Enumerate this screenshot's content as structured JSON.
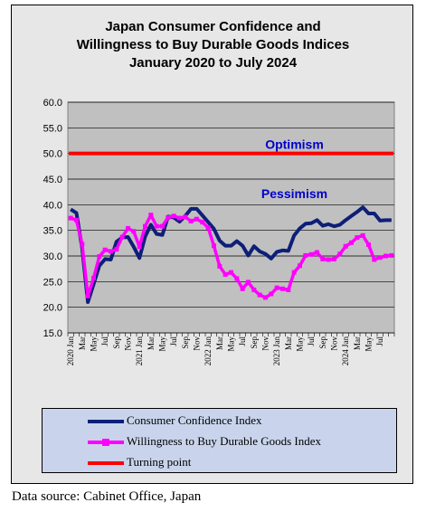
{
  "source_note": "Data source: Cabinet Office, Japan",
  "chart_data": {
    "type": "line",
    "title_lines": [
      "Japan Consumer Confidence and",
      "Willingness to Buy Durable Goods Indices",
      "January 2020 to July 2024"
    ],
    "ylim": [
      15.0,
      60.0
    ],
    "yticks": [
      "60.0",
      "55.0",
      "50.0",
      "45.0",
      "40.0",
      "35.0",
      "30.0",
      "25.0",
      "20.0",
      "15.0"
    ],
    "grid": true,
    "legend_position": "bottom",
    "x_tick_labels": [
      "2020 Jan",
      "Mar",
      "May",
      "Jul",
      "Sep",
      "Nov",
      "2021 Jan",
      "Mar",
      "May",
      "Jul",
      "Sep",
      "Nov",
      "2022 Jan",
      "Mar",
      "May",
      "Jul",
      "Sep",
      "Nov",
      "2023 Jan",
      "Mar",
      "May",
      "Jul",
      "Sep",
      "Nov",
      "2024 Jan",
      "Mar",
      "May",
      "Jul"
    ],
    "series": [
      {
        "name": "Consumer Confidence Index",
        "color": "#0d1f78",
        "values": [
          39.1,
          38.4,
          31.5,
          21.0,
          24.5,
          28.1,
          29.4,
          29.3,
          32.8,
          33.6,
          33.7,
          31.8,
          29.6,
          33.8,
          36.1,
          34.3,
          34.1,
          37.7,
          37.5,
          36.7,
          37.8,
          39.2,
          39.2,
          37.9,
          36.6,
          35.3,
          33.0,
          32.0,
          32.0,
          32.9,
          32.0,
          30.1,
          31.9,
          30.9,
          30.4,
          29.5,
          30.8,
          31.1,
          31.0,
          34.0,
          35.4,
          36.3,
          36.4,
          37.0,
          35.9,
          36.2,
          35.8,
          36.1,
          37.0,
          37.8,
          38.6,
          39.5,
          38.3,
          38.3,
          36.9,
          37.0,
          37.0
        ],
        "markers": "none"
      },
      {
        "name": "Willingness to Buy Durable Goods Index",
        "color": "#ff00ff",
        "values": [
          37.4,
          37.0,
          32.3,
          22.2,
          25.7,
          29.9,
          31.2,
          30.9,
          31.3,
          33.7,
          35.4,
          34.8,
          31.8,
          35.8,
          38.0,
          35.8,
          35.8,
          37.5,
          37.8,
          37.4,
          37.6,
          36.8,
          37.2,
          36.6,
          35.5,
          32.0,
          28.0,
          26.4,
          26.8,
          25.6,
          23.6,
          24.9,
          23.4,
          22.4,
          21.9,
          22.6,
          23.8,
          23.6,
          23.4,
          26.8,
          28.1,
          30.1,
          30.3,
          30.7,
          29.4,
          29.3,
          29.4,
          30.4,
          31.9,
          32.6,
          33.6,
          34.0,
          32.2,
          29.3,
          29.7,
          30.0,
          30.1
        ],
        "markers": "square"
      },
      {
        "name": "Turning point",
        "color": "#ff0000",
        "values": [
          50.0,
          50.0
        ],
        "markers": "none"
      }
    ],
    "annotations": [
      {
        "text": "Optimism",
        "color": "#0000cc",
        "y": 51.8
      },
      {
        "text": "Pessimism",
        "color": "#0000cc",
        "y": 42.2
      }
    ]
  }
}
